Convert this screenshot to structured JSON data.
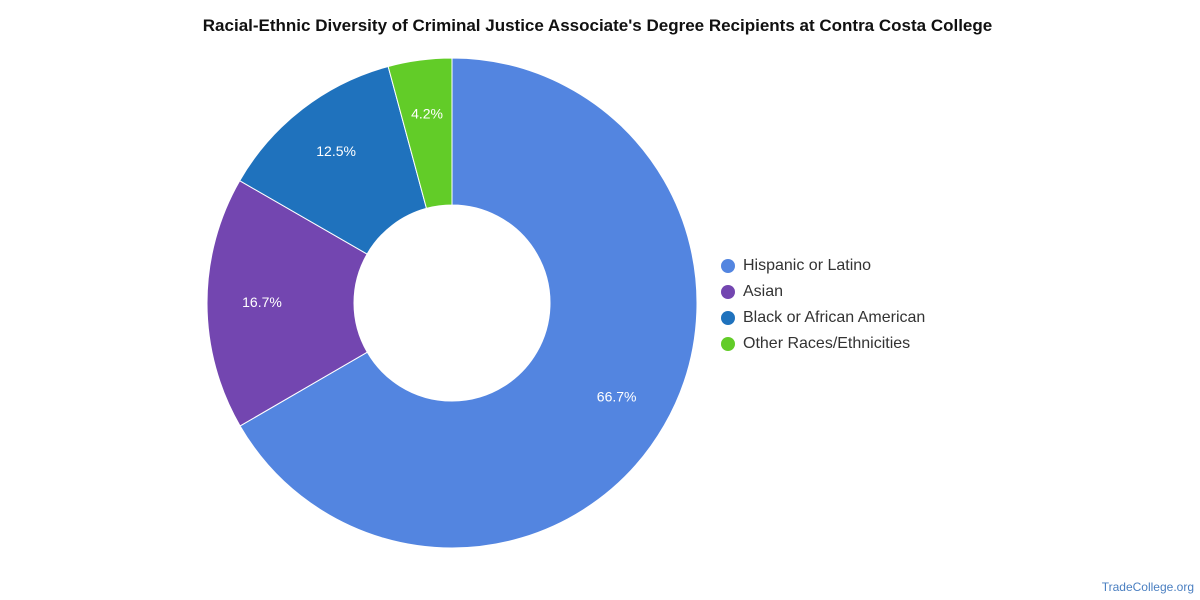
{
  "chart_data": {
    "type": "pie",
    "title": "Racial-Ethnic Diversity of Criminal Justice Associate's Degree Recipients at Contra Costa College",
    "categories": [
      "Hispanic or Latino",
      "Asian",
      "Black or African American",
      "Other Races/Ethnicities"
    ],
    "values": [
      66.7,
      16.7,
      12.5,
      4.2
    ],
    "labels": [
      "66.7%",
      "16.7%",
      "12.5%",
      "4.2%"
    ],
    "colors": [
      "#5385e0",
      "#7346b0",
      "#1f72bd",
      "#62cc28"
    ],
    "legend": "right",
    "donut": true
  },
  "watermark": "TradeCollege.org"
}
